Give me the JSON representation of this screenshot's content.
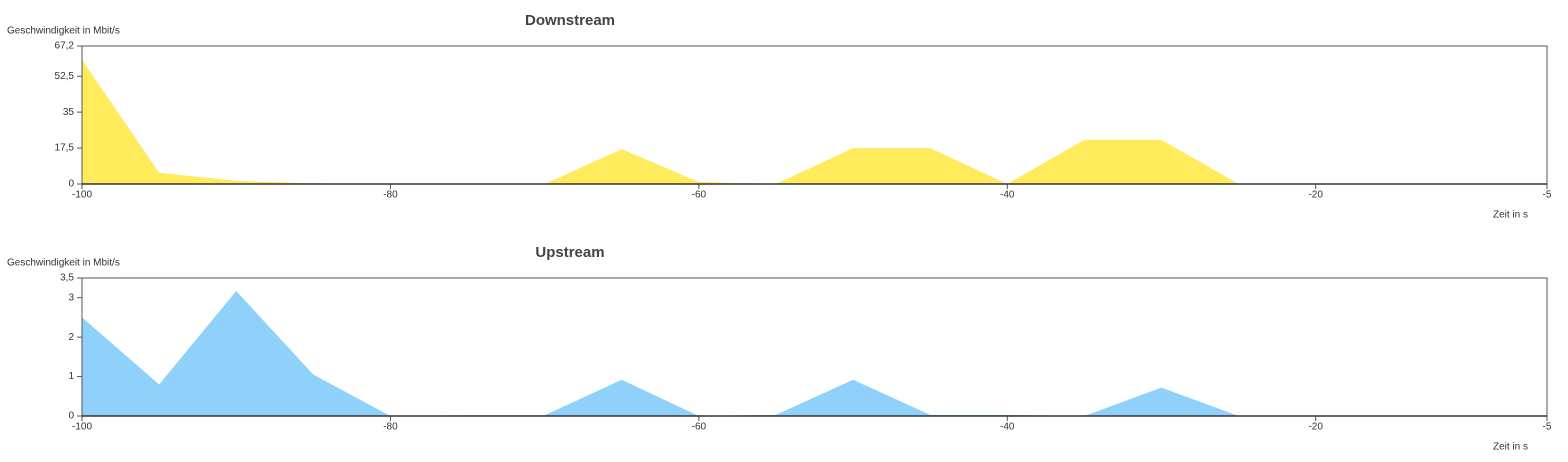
{
  "chart_data": [
    {
      "type": "area",
      "title": "Downstream",
      "ylabel": "Geschwindigkeit in Mbit/s",
      "xlabel": "Zeit in s",
      "x": [
        -100,
        -95,
        -90,
        -85,
        -80,
        -75,
        -70,
        -65,
        -60,
        -55,
        -50,
        -45,
        -40,
        -35,
        -30,
        -25,
        -20,
        -15,
        -10,
        -5
      ],
      "values": [
        60.5,
        5.5,
        1.5,
        0.3,
        0,
        0.2,
        0,
        17,
        1,
        0,
        17.5,
        17.5,
        0,
        21.5,
        21.5,
        0,
        0,
        0,
        0,
        0
      ],
      "color": "#ffeb5c",
      "xlim": [
        -100,
        -5
      ],
      "xticks": [
        -100,
        -80,
        -60,
        -40,
        -20,
        -5
      ],
      "ylim": [
        0,
        67.2
      ],
      "yticks": [
        0,
        {
          "value": 17.5,
          "label": "17,5"
        },
        35,
        {
          "value": 52.5,
          "label": "52,5"
        },
        {
          "value": 67.2,
          "label": "67,2"
        }
      ]
    },
    {
      "type": "area",
      "title": "Upstream",
      "ylabel": "Geschwindigkeit in Mbit/s",
      "xlabel": "Zeit in s",
      "x": [
        -100,
        -95,
        -90,
        -85,
        -80,
        -75,
        -70,
        -65,
        -60,
        -55,
        -50,
        -45,
        -40,
        -35,
        -30,
        -25,
        -20,
        -15,
        -10,
        -5
      ],
      "values": [
        2.5,
        0.8,
        3.17,
        1.05,
        0,
        0.02,
        0.02,
        0.92,
        0,
        0.03,
        0.92,
        0.03,
        0.03,
        0,
        0.72,
        0,
        0,
        0,
        0,
        0
      ],
      "color": "#8fd1fb",
      "xlim": [
        -100,
        -5
      ],
      "xticks": [
        -100,
        -80,
        -60,
        -40,
        -20,
        -5
      ],
      "ylim": [
        0,
        3.5
      ],
      "yticks": [
        0,
        1,
        2,
        3,
        {
          "value": 3.5,
          "label": "3,5"
        }
      ]
    }
  ]
}
